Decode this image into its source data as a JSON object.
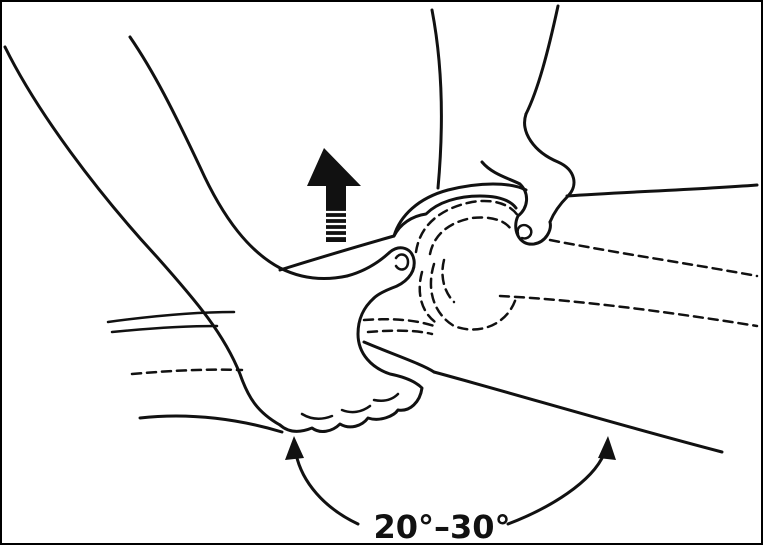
{
  "figure": {
    "angle_label": "20°–30°"
  }
}
